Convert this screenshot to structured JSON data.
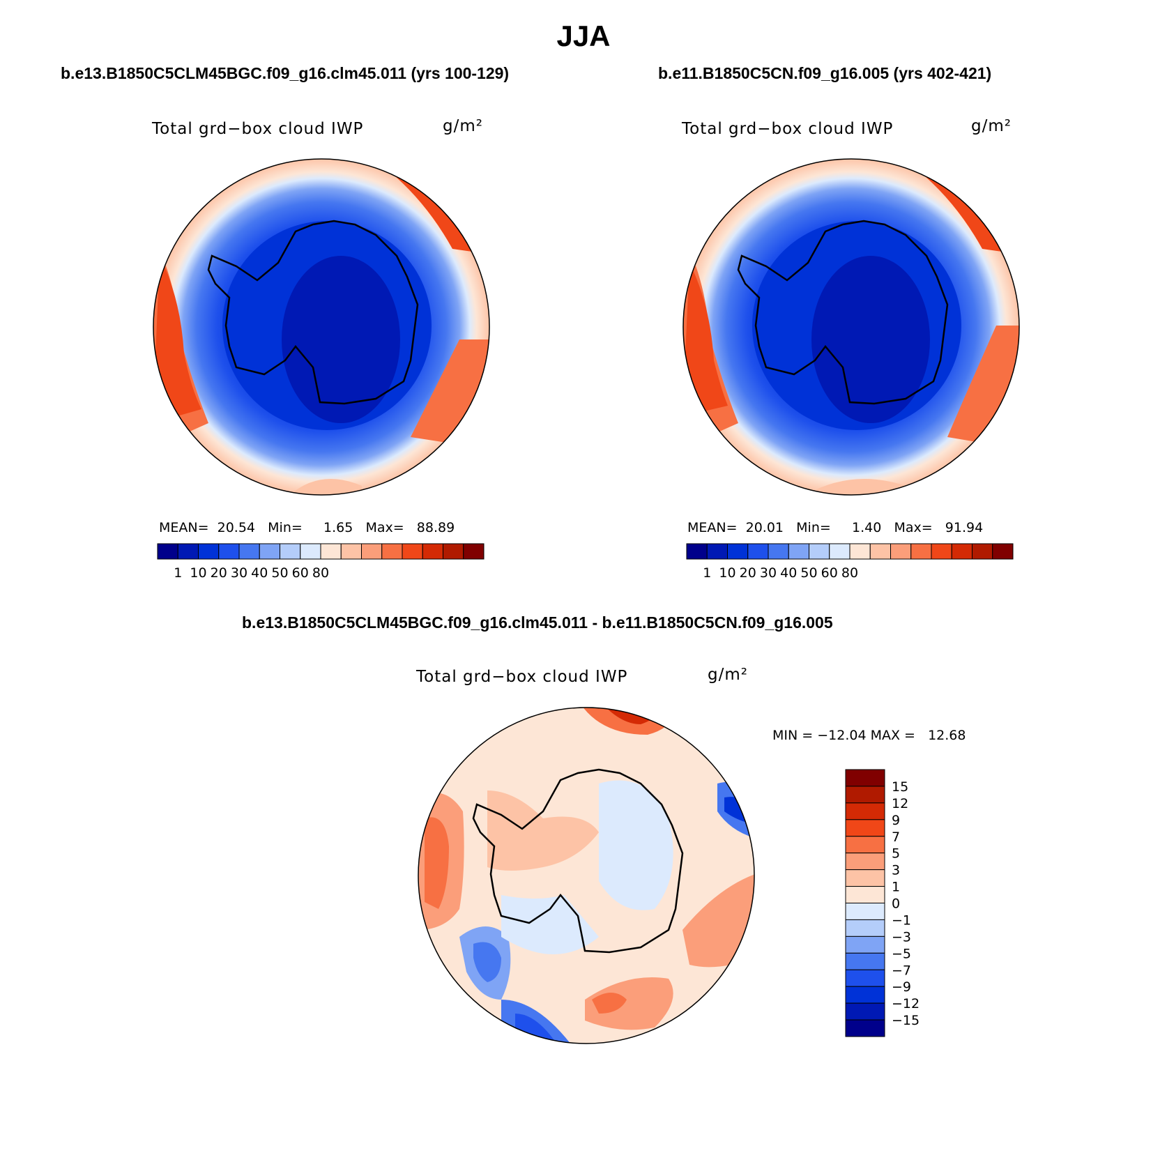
{
  "figure_title": "JJA",
  "panels": [
    {
      "case_title": "b.e13.B1850C5CLM45BGC.f09_g16.clm45.011 (yrs 100-129)",
      "variable": "Total grd−box cloud IWP",
      "units": "g/m²",
      "stats": {
        "mean_label": "MEAN=",
        "mean": "20.54",
        "min_label": "Min=",
        "min": "1.65",
        "max_label": "Max=",
        "max": "88.89"
      }
    },
    {
      "case_title": "b.e11.B1850C5CN.f09_g16.005 (yrs 402-421)",
      "variable": "Total grd−box cloud IWP",
      "units": "g/m²",
      "stats": {
        "mean_label": "MEAN=",
        "mean": "20.01",
        "min_label": "Min=",
        "min": "1.40",
        "max_label": "Max=",
        "max": "91.94"
      }
    },
    {
      "case_title": "b.e13.B1850C5CLM45BGC.f09_g16.clm45.011 - b.e11.B1850C5CN.f09_g16.005",
      "variable": "Total grd−box cloud IWP",
      "units": "g/m²",
      "stats": {
        "min_label": "MIN =",
        "min": "−12.04",
        "max_label": "MAX =",
        "max": "12.68"
      }
    }
  ],
  "chart_data": [
    {
      "type": "heatmap",
      "projection": "south polar stereographic",
      "field": "Total grd-box cloud IWP (g/m²), JJA mean",
      "colorbar": {
        "orientation": "horizontal",
        "tick_labels": [
          "1",
          "10",
          "20",
          "30",
          "40",
          "50",
          "60",
          "80"
        ],
        "colors": [
          "#00008b",
          "#0019b4",
          "#0032d7",
          "#1e50ec",
          "#4677f0",
          "#7fa4f5",
          "#b4cdfa",
          "#dceafd",
          "#fde6d6",
          "#fdc3a6",
          "#fb9e7a",
          "#f77043",
          "#f04718",
          "#d42a05",
          "#b01a00",
          "#800000"
        ]
      },
      "stats": {
        "mean": 20.54,
        "min": 1.65,
        "max": 88.89
      }
    },
    {
      "type": "heatmap",
      "projection": "south polar stereographic",
      "field": "Total grd-box cloud IWP (g/m²), JJA mean",
      "colorbar": {
        "orientation": "horizontal",
        "tick_labels": [
          "1",
          "10",
          "20",
          "30",
          "40",
          "50",
          "60",
          "80"
        ],
        "colors": [
          "#00008b",
          "#0019b4",
          "#0032d7",
          "#1e50ec",
          "#4677f0",
          "#7fa4f5",
          "#b4cdfa",
          "#dceafd",
          "#fde6d6",
          "#fdc3a6",
          "#fb9e7a",
          "#f77043",
          "#f04718",
          "#d42a05",
          "#b01a00",
          "#800000"
        ]
      },
      "stats": {
        "mean": 20.01,
        "min": 1.4,
        "max": 91.94
      }
    },
    {
      "type": "heatmap",
      "projection": "south polar stereographic",
      "field": "Difference of Total grd-box cloud IWP (g/m²)",
      "colorbar": {
        "orientation": "vertical",
        "tick_labels": [
          "15",
          "12",
          "9",
          "7",
          "5",
          "3",
          "1",
          "0",
          "−1",
          "−3",
          "−5",
          "−7",
          "−9",
          "−12",
          "−15"
        ],
        "colors": [
          "#800000",
          "#b01a00",
          "#d42a05",
          "#f04718",
          "#f77043",
          "#fb9e7a",
          "#fdc3a6",
          "#fde6d6",
          "#dceafd",
          "#b4cdfa",
          "#7fa4f5",
          "#4677f0",
          "#1e50ec",
          "#0032d7",
          "#0019b4",
          "#00008b"
        ]
      },
      "stats": {
        "min": -12.04,
        "max": 12.68
      }
    }
  ]
}
